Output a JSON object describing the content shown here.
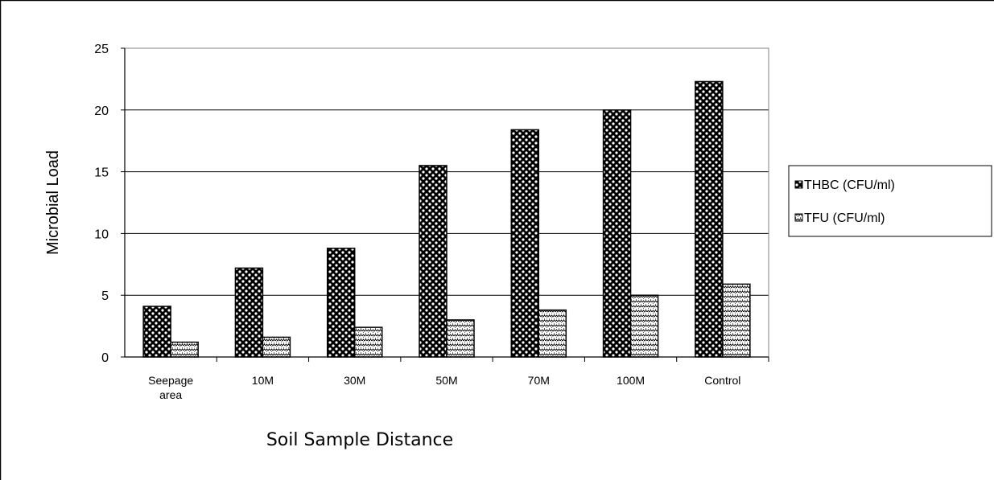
{
  "chart_data": {
    "type": "bar",
    "categories": [
      "Seepage area",
      "10M",
      "30M",
      "50M",
      "70M",
      "100M",
      "Control"
    ],
    "category_lines": [
      [
        "Seepage",
        "area"
      ],
      [
        "10M"
      ],
      [
        "30M"
      ],
      [
        "50M"
      ],
      [
        "70M"
      ],
      [
        "100M"
      ],
      [
        "Control"
      ]
    ],
    "series": [
      {
        "name": "THBC (CFU/ml)",
        "values": [
          4.1,
          7.2,
          8.8,
          15.5,
          18.4,
          20.0,
          22.3
        ],
        "pattern": "checker-circles"
      },
      {
        "name": "TFU (CFU/ml)",
        "values": [
          1.2,
          1.6,
          2.4,
          3.0,
          3.8,
          5.0,
          5.9
        ],
        "pattern": "light-zigzag"
      }
    ],
    "title": "",
    "xlabel": "Soil Sample Distance",
    "ylabel": "Microbial  Load",
    "ylim": [
      0,
      25
    ],
    "yticks": [
      "0",
      "5",
      "10",
      "15",
      "20",
      "25"
    ],
    "grid": true,
    "legend_position": "right",
    "colors": {
      "bar_stroke": "#000000",
      "grid": "#000000",
      "background": "#ffffff"
    }
  }
}
